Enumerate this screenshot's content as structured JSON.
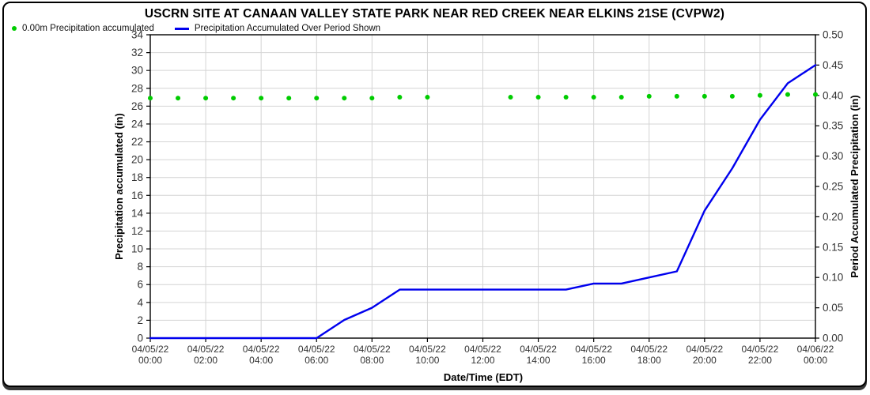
{
  "title": "USCRN SITE AT CANAAN VALLEY STATE PARK NEAR RED CREEK NEAR ELKINS 21SE (CVPW2)",
  "legend": {
    "items": [
      {
        "label": "0.00m Precipitation accumulated",
        "marker": "green-dot",
        "color": "#00cc00"
      },
      {
        "label": "Precipitation Accumulated Over Period Shown",
        "marker": "blue-line",
        "color": "#0000ee"
      }
    ]
  },
  "chart_data": {
    "type": "line",
    "title": "USCRN SITE AT CANAAN VALLEY STATE PARK NEAR RED CREEK NEAR ELKINS 21SE (CVPW2)",
    "grid": true,
    "x_axis": {
      "label": "Date/Time (EDT)",
      "hours_range": [
        0,
        24
      ],
      "tick_step_hours": 2,
      "ticks": [
        {
          "date": "04/05/22",
          "time": "00:00"
        },
        {
          "date": "04/05/22",
          "time": "02:00"
        },
        {
          "date": "04/05/22",
          "time": "04:00"
        },
        {
          "date": "04/05/22",
          "time": "06:00"
        },
        {
          "date": "04/05/22",
          "time": "08:00"
        },
        {
          "date": "04/05/22",
          "time": "10:00"
        },
        {
          "date": "04/05/22",
          "time": "12:00"
        },
        {
          "date": "04/05/22",
          "time": "14:00"
        },
        {
          "date": "04/05/22",
          "time": "16:00"
        },
        {
          "date": "04/05/22",
          "time": "18:00"
        },
        {
          "date": "04/05/22",
          "time": "20:00"
        },
        {
          "date": "04/05/22",
          "time": "22:00"
        },
        {
          "date": "04/06/22",
          "time": "00:00"
        }
      ]
    },
    "left_axis": {
      "label": "Precipitation accumulated (in)",
      "min": 0,
      "max": 34,
      "tick_step": 2,
      "ticks": [
        0,
        2,
        4,
        6,
        8,
        10,
        12,
        14,
        16,
        18,
        20,
        22,
        24,
        26,
        28,
        30,
        32,
        34
      ]
    },
    "right_axis": {
      "label": "Period Accumulated Precipitation (in)",
      "min": 0.0,
      "max": 0.5,
      "tick_step": 0.05,
      "ticks": [
        "0.00",
        "0.05",
        "0.10",
        "0.15",
        "0.20",
        "0.25",
        "0.30",
        "0.35",
        "0.40",
        "0.45",
        "0.50"
      ]
    },
    "series": [
      {
        "name": "0.00m Precipitation accumulated",
        "type": "scatter",
        "axis": "left",
        "color": "#00cc00",
        "points": [
          [
            0,
            26.9
          ],
          [
            1,
            26.9
          ],
          [
            2,
            26.9
          ],
          [
            3,
            26.9
          ],
          [
            4,
            26.9
          ],
          [
            5,
            26.9
          ],
          [
            6,
            26.9
          ],
          [
            7,
            26.9
          ],
          [
            8,
            26.9
          ],
          [
            9,
            27.0
          ],
          [
            10,
            27.0
          ],
          [
            13,
            27.0
          ],
          [
            14,
            27.0
          ],
          [
            15,
            27.0
          ],
          [
            16,
            27.0
          ],
          [
            17,
            27.0
          ],
          [
            18,
            27.1
          ],
          [
            19,
            27.1
          ],
          [
            20,
            27.1
          ],
          [
            21,
            27.1
          ],
          [
            22,
            27.2
          ],
          [
            23,
            27.3
          ],
          [
            24,
            27.3
          ]
        ]
      },
      {
        "name": "Precipitation Accumulated Over Period Shown",
        "type": "line",
        "axis": "right",
        "color": "#0000ee",
        "points": [
          [
            0,
            0.0
          ],
          [
            1,
            0.0
          ],
          [
            2,
            0.0
          ],
          [
            3,
            0.0
          ],
          [
            4,
            0.0
          ],
          [
            5,
            0.0
          ],
          [
            6,
            0.0
          ],
          [
            7,
            0.03
          ],
          [
            8,
            0.05
          ],
          [
            9,
            0.08
          ],
          [
            10,
            0.08
          ],
          [
            11,
            0.08
          ],
          [
            12,
            0.08
          ],
          [
            13,
            0.08
          ],
          [
            14,
            0.08
          ],
          [
            15,
            0.08
          ],
          [
            16,
            0.09
          ],
          [
            17,
            0.09
          ],
          [
            18,
            0.1
          ],
          [
            19,
            0.11
          ],
          [
            20,
            0.21
          ],
          [
            21,
            0.28
          ],
          [
            22,
            0.36
          ],
          [
            23,
            0.42
          ],
          [
            24,
            0.45
          ]
        ]
      }
    ]
  },
  "colors": {
    "scatter_green": "#00cc00",
    "line_blue": "#0000ee",
    "gridline": "#d4d4d4",
    "axis": "#000000",
    "tick_text": "#333333"
  }
}
